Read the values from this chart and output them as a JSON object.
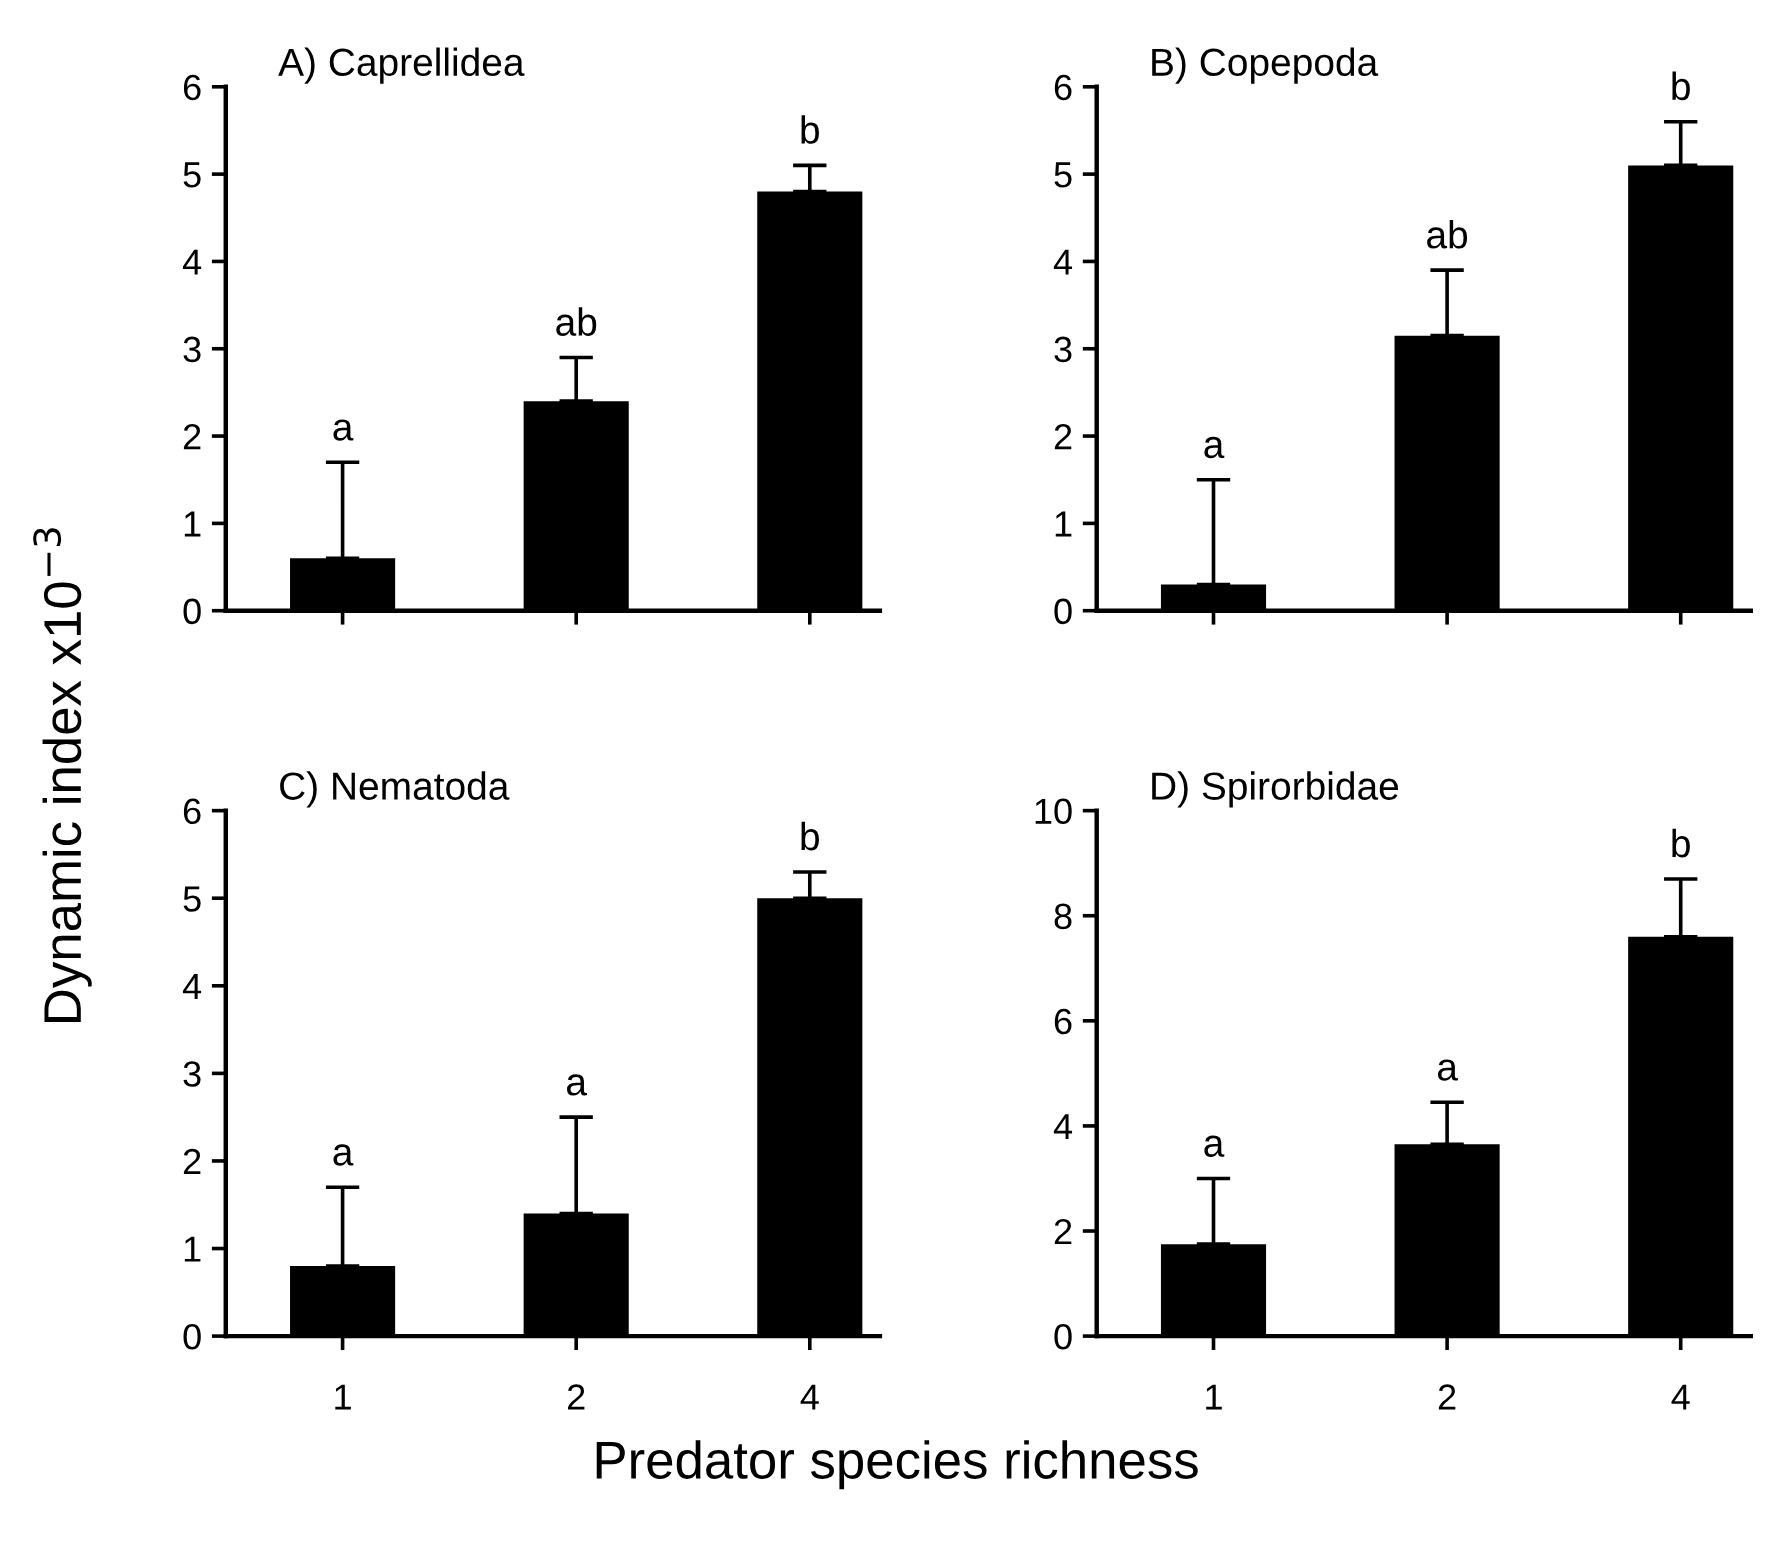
{
  "chart_data": [
    {
      "type": "bar",
      "title": "A) Caprellidea",
      "ylabel": "Dynamic index x10$^{−3}$",
      "categories": [
        "1",
        "2",
        "4"
      ],
      "values": [
        0.6,
        2.4,
        4.8
      ],
      "errors": [
        [
          0.6,
          1.7
        ],
        [
          2.4,
          2.9
        ],
        [
          4.8,
          5.1
        ]
      ],
      "color": "#000000",
      "ylim": [
        0,
        6
      ],
      "yticks": [
        0,
        1,
        2,
        3,
        4,
        5,
        6
      ],
      "tick_labels": "y",
      "grid": false,
      "legend": false,
      "annotations": [
        {
          "text": "a",
          "x": "1",
          "y": 1.7
        },
        {
          "text": "ab",
          "x": "2",
          "y": 2.9
        },
        {
          "text": "b",
          "x": "4",
          "y": 5.1
        }
      ]
    },
    {
      "type": "bar",
      "title": "B) Copepoda",
      "categories": [
        "1",
        "2",
        "4"
      ],
      "values": [
        0.3,
        3.15,
        5.1
      ],
      "errors": [
        [
          0.3,
          1.5
        ],
        [
          3.15,
          3.9
        ],
        [
          5.1,
          5.6
        ]
      ],
      "color": "#000000",
      "ylim": [
        0,
        6
      ],
      "yticks": [
        0,
        1,
        2,
        3,
        4,
        5,
        6
      ],
      "tick_labels": "y",
      "grid": false,
      "legend": false,
      "annotations": [
        {
          "text": "a",
          "x": "1",
          "y": 1.5
        },
        {
          "text": "ab",
          "x": "2",
          "y": 3.9
        },
        {
          "text": "b",
          "x": "4",
          "y": 5.6
        }
      ]
    },
    {
      "type": "bar",
      "title": "C) Nematoda",
      "xlabel": "Predator species richness",
      "categories": [
        "1",
        "2",
        "4"
      ],
      "values": [
        0.8,
        1.4,
        5.0
      ],
      "errors": [
        [
          0.8,
          1.7
        ],
        [
          1.4,
          2.5
        ],
        [
          5.0,
          5.3
        ]
      ],
      "color": "#000000",
      "ylim": [
        0,
        6
      ],
      "yticks": [
        0,
        1,
        2,
        3,
        4,
        5,
        6
      ],
      "grid": false,
      "legend": false,
      "annotations": [
        {
          "text": "a",
          "x": "1",
          "y": 1.7
        },
        {
          "text": "a",
          "x": "2",
          "y": 2.5
        },
        {
          "text": "b",
          "x": "4",
          "y": 5.3
        }
      ]
    },
    {
      "type": "bar",
      "title": "D) Spirorbidae",
      "categories": [
        "1",
        "2",
        "4"
      ],
      "values": [
        1.75,
        3.65,
        7.6
      ],
      "errors": [
        [
          1.75,
          3.0
        ],
        [
          3.65,
          4.45
        ],
        [
          7.6,
          8.7
        ]
      ],
      "color": "#000000",
      "ylim": [
        0,
        10
      ],
      "yticks": [
        0,
        2,
        4,
        6,
        8,
        10
      ],
      "grid": false,
      "legend": false,
      "annotations": [
        {
          "text": "a",
          "x": "1",
          "y": 3.0
        },
        {
          "text": "a",
          "x": "2",
          "y": 4.45
        },
        {
          "text": "b",
          "x": "4",
          "y": 8.7
        }
      ]
    }
  ]
}
